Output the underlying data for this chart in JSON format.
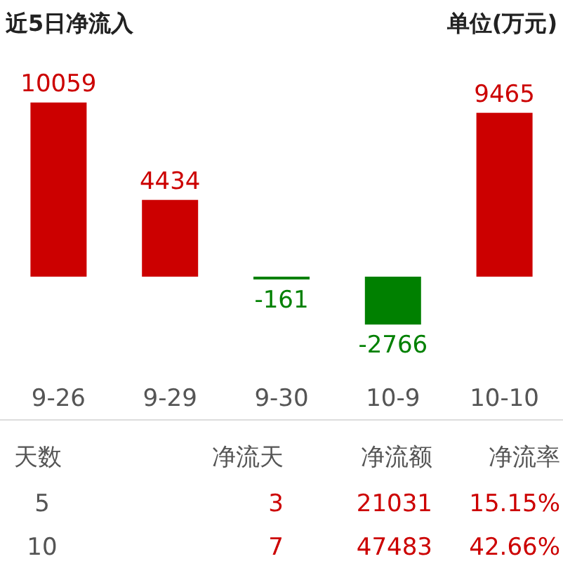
{
  "chart_data": [
    {
      "type": "bar",
      "title": "近5日净流入",
      "subtitle": "单位(万元)",
      "categories": [
        "9-26",
        "9-29",
        "9-30",
        "10-9",
        "10-10"
      ],
      "values": [
        10059,
        4434,
        -161,
        -2766,
        9465
      ],
      "colors": [
        "#cc0000",
        "#cc0000",
        "#008000",
        "#008000",
        "#cc0000"
      ],
      "data_labels": true
    },
    {
      "type": "other",
      "annotations": [
        "天数",
        "净流天",
        "净流额",
        "净流率",
        "5",
        "3",
        "21031",
        "15.15%",
        "10",
        "7",
        "47483",
        "42.66%"
      ]
    }
  ]
}
